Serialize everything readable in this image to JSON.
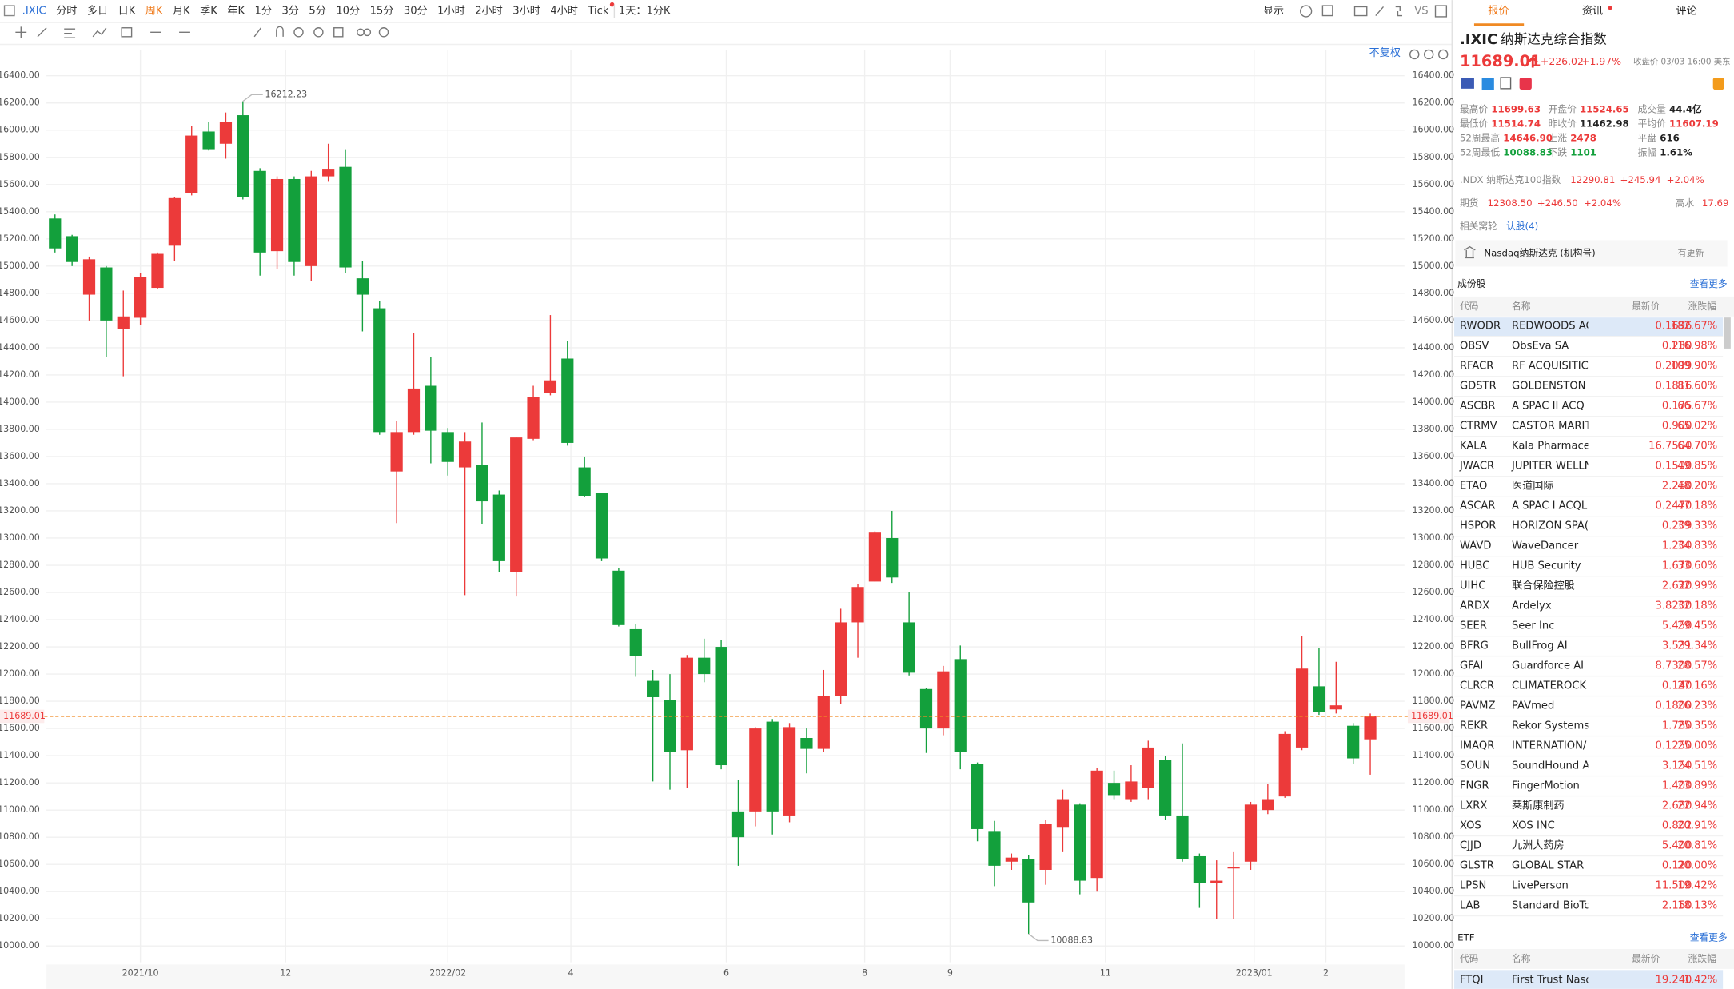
{
  "toolbar": {
    "symbol": ".IXIC",
    "periods": [
      "分时",
      "多日",
      "日K",
      "周K",
      "月K",
      "季K",
      "年K",
      "1分",
      "3分",
      "5分",
      "10分",
      "15分",
      "30分",
      "1小时",
      "2小时",
      "3小时",
      "4小时",
      "Tick"
    ],
    "selected": 3,
    "interval": "1天：1分K",
    "display": "显示",
    "vs": "VS",
    "adjust": "不复权"
  },
  "chart_data": {
    "type": "candlestick",
    "open": [
      15350,
      15220,
      14790,
      14990,
      14540,
      14620,
      14840,
      15150,
      15540,
      15990,
      15900,
      16110,
      15700,
      15110,
      15640,
      15000,
      15660,
      15730,
      14910,
      14690,
      13490,
      13780,
      14120,
      13780,
      13520,
      13540,
      13320,
      12750,
      13730,
      14070,
      14320,
      13520,
      13330,
      12760,
      12330,
      11950,
      11810,
      11440,
      12120,
      12200,
      10990,
      10990,
      11650,
      10960,
      11530,
      11450,
      11840,
      12380,
      12680,
      13000,
      12380,
      11890,
      11600,
      12110,
      11340,
      10840,
      10620,
      10640,
      10560,
      10870,
      11040,
      10500,
      11200,
      11080,
      11160,
      11370,
      10960,
      10660,
      10460,
      10570,
      10620,
      11000,
      11100,
      11460,
      11910,
      11740,
      11620,
      11520
    ],
    "high": [
      15380,
      15230,
      15070,
      15000,
      14820,
      14950,
      15100,
      15510,
      16030,
      16060,
      16130,
      16212.23,
      15720,
      15660,
      15660,
      15700,
      15900,
      15860,
      15040,
      14740,
      13860,
      14510,
      14330,
      13810,
      13780,
      13850,
      13350,
      13740,
      14120,
      14640,
      14450,
      13600,
      13330,
      12780,
      12370,
      12030,
      12000,
      12140,
      12260,
      12250,
      11220,
      11610,
      11670,
      11640,
      11600,
      12030,
      12480,
      12660,
      13050,
      13200,
      12600,
      11900,
      12060,
      12210,
      11350,
      10920,
      10680,
      10670,
      10930,
      11150,
      11050,
      11310,
      11290,
      11330,
      11510,
      11400,
      11490,
      10680,
      10630,
      10690,
      11060,
      11190,
      11580,
      12280,
      12190,
      12090,
      11640,
      11710
    ],
    "low": [
      15100,
      15000,
      14600,
      14330,
      14190,
      14570,
      14830,
      15040,
      15520,
      15850,
      15790,
      15490,
      14930,
      14980,
      14930,
      14890,
      15620,
      14950,
      14520,
      13760,
      13110,
      13760,
      13550,
      13460,
      12580,
      13100,
      12750,
      12570,
      13720,
      14050,
      13680,
      13300,
      12830,
      12350,
      11980,
      11210,
      11150,
      11160,
      11940,
      11300,
      10590,
      10880,
      10820,
      10910,
      11270,
      11430,
      11780,
      12120,
      12680,
      12670,
      11990,
      11420,
      11550,
      11300,
      10770,
      10440,
      10560,
      10088.83,
      10450,
      10690,
      10380,
      10400,
      11080,
      11060,
      11080,
      10930,
      10620,
      10280,
      10200,
      10200,
      10560,
      10970,
      11090,
      11440,
      11700,
      11710,
      11340,
      11260
    ],
    "close": [
      15130,
      15030,
      15050,
      14600,
      14630,
      14920,
      15090,
      15500,
      15960,
      15860,
      16060,
      15510,
      15100,
      15640,
      15030,
      15660,
      15710,
      14990,
      14790,
      13780,
      13780,
      14100,
      13790,
      13560,
      13710,
      13270,
      12830,
      13740,
      14040,
      14160,
      13700,
      13310,
      12850,
      12360,
      12130,
      11830,
      11430,
      12120,
      12000,
      11330,
      10800,
      11600,
      10990,
      11610,
      11450,
      11840,
      12380,
      12640,
      13040,
      12710,
      12010,
      11600,
      12020,
      11430,
      10860,
      10590,
      10650,
      10320,
      10900,
      11080,
      10480,
      11290,
      11110,
      11210,
      11460,
      10960,
      10640,
      10460,
      10480,
      10580,
      11040,
      11080,
      11560,
      12040,
      11720,
      11770,
      11380,
      11689.01
    ],
    "up_color": "#ec3a3a",
    "down_color": "#13a03c",
    "xlim": [
      -0.5,
      79
    ],
    "xticks": [
      {
        "value": 5,
        "label": "2021/10"
      },
      {
        "value": 13.5,
        "label": "12"
      },
      {
        "value": 23,
        "label": "2022/02"
      },
      {
        "value": 30.2,
        "label": "4"
      },
      {
        "value": 39.3,
        "label": "6"
      },
      {
        "value": 47.4,
        "label": "8"
      },
      {
        "value": 52.4,
        "label": "9"
      },
      {
        "value": 61.5,
        "label": "11"
      },
      {
        "value": 70.2,
        "label": "2023/01"
      },
      {
        "value": 74.4,
        "label": "2"
      }
    ],
    "ylim": [
      9880,
      16590
    ],
    "yticks": [
      {
        "value": 10000,
        "label": "10000.00"
      },
      {
        "value": 10200,
        "label": "10200.00"
      },
      {
        "value": 10400,
        "label": "10400.00"
      },
      {
        "value": 10600,
        "label": "10600.00"
      },
      {
        "value": 10800,
        "label": "10800.00"
      },
      {
        "value": 11000,
        "label": "11000.00"
      },
      {
        "value": 11200,
        "label": "11200.00"
      },
      {
        "value": 11400,
        "label": "11400.00"
      },
      {
        "value": 11600,
        "label": "11600.00"
      },
      {
        "value": 11800,
        "label": "11800.00"
      },
      {
        "value": 12000,
        "label": "12000.00"
      },
      {
        "value": 12200,
        "label": "12200.00"
      },
      {
        "value": 12400,
        "label": "12400.00"
      },
      {
        "value": 12600,
        "label": "12600.00"
      },
      {
        "value": 12800,
        "label": "12800.00"
      },
      {
        "value": 13000,
        "label": "13000.00"
      },
      {
        "value": 13200,
        "label": "13200.00"
      },
      {
        "value": 13400,
        "label": "13400.00"
      },
      {
        "value": 13600,
        "label": "13600.00"
      },
      {
        "value": 13800,
        "label": "13800.00"
      },
      {
        "value": 14000,
        "label": "14000.00"
      },
      {
        "value": 14200,
        "label": "14200.00"
      },
      {
        "value": 14400,
        "label": "14400.00"
      },
      {
        "value": 14600,
        "label": "14600.00"
      },
      {
        "value": 14800,
        "label": "14800.00"
      },
      {
        "value": 15000,
        "label": "15000.00"
      },
      {
        "value": 15200,
        "label": "15200.00"
      },
      {
        "value": 15400,
        "label": "15400.00"
      },
      {
        "value": 15600,
        "label": "15600.00"
      },
      {
        "value": 15800,
        "label": "15800.00"
      },
      {
        "value": 16000,
        "label": "16000.00"
      },
      {
        "value": 16200,
        "label": "16200.00"
      },
      {
        "value": 16400,
        "label": "16400.00"
      }
    ],
    "grid": true,
    "annotations": [
      {
        "index": 11,
        "value": 16212.23,
        "label": "16212.23"
      },
      {
        "index": 57,
        "value": 10088.83,
        "label": "10088.83"
      }
    ],
    "last_price": {
      "value": 11689.01,
      "label": "11689.01"
    }
  },
  "panel": {
    "tabs": [
      "报价",
      "资讯",
      "评论"
    ],
    "symbol": ".IXIC",
    "name": "纳斯达克综合指数",
    "price": "11689.01",
    "change": "+226.02",
    "change_pct": "+1.97%",
    "time": "收盘价 03/03 16:00 美东",
    "stats": [
      [
        "最高价",
        "11699.63"
      ],
      [
        "开盘价",
        "11524.65"
      ],
      [
        "成交量",
        "44.4亿"
      ],
      [
        "最低价",
        "11514.74"
      ],
      [
        "昨收价",
        "11462.98"
      ],
      [
        "平均价",
        "11607.19"
      ],
      [
        "52周最高",
        "14646.90"
      ],
      [
        "上涨",
        "2478"
      ],
      [
        "平盘",
        "616"
      ],
      [
        "52周最低",
        "10088.83"
      ],
      [
        "下跌",
        "1101"
      ],
      [
        "振幅",
        "1.61%"
      ]
    ],
    "ndx": [
      ".NDX 纳斯达克100指数",
      "12290.81",
      "+245.94",
      "+2.04%"
    ],
    "futures": [
      "期货",
      "12308.50",
      "+246.50",
      "+2.04%",
      "高水",
      "17.69"
    ],
    "warrants": [
      "相关窝轮",
      "认股(4)"
    ],
    "account": [
      "Nasdaq纳斯达克 (机构号)",
      "有更新"
    ],
    "constituents": {
      "title": "成份股",
      "more": "查看更多",
      "headers": [
        "代码",
        "名称",
        "最新价",
        "涨跌幅"
      ],
      "rows": [
        [
          "RWODR",
          "REDWOODS AC",
          "0.1696",
          "182.67%"
        ],
        [
          "OBSV",
          "ObsEva SA",
          "0.230",
          "116.98%"
        ],
        [
          "RFACR",
          "RF ACQUISITIC",
          "0.2099",
          "109.90%"
        ],
        [
          "GDSTR",
          "GOLDENSTON",
          "0.1816",
          "81.60%"
        ],
        [
          "ASCBR",
          "A SPAC II ACQ",
          "0.175",
          "66.67%"
        ],
        [
          "CTRMV",
          "CASTOR MARIT",
          "0.900",
          "65.02%"
        ],
        [
          "KALA",
          "Kala Pharmaceu",
          "16.7500",
          "64.70%"
        ],
        [
          "JWACR",
          "JUPITER WELLN",
          "0.1500",
          "49.85%"
        ],
        [
          "ETAO",
          "医道国际",
          "2.260",
          "48.20%"
        ],
        [
          "ASCAR",
          "A SPAC I ACQL",
          "0.2470",
          "47.18%"
        ],
        [
          "HSPOR",
          "HORIZON SPA(",
          "0.209",
          "39.33%"
        ],
        [
          "WAVD",
          "WaveDancer",
          "1.200",
          "34.83%"
        ],
        [
          "HUBC",
          "HUB Security",
          "1.670",
          "33.60%"
        ],
        [
          "UIHC",
          "联合保险控股",
          "2.620",
          "32.99%"
        ],
        [
          "ARDX",
          "Ardelyx",
          "3.8200",
          "32.18%"
        ],
        [
          "SEER",
          "Seer Inc",
          "5.450",
          "29.45%"
        ],
        [
          "BFRG",
          "BullFrog AI",
          "3.531",
          "29.34%"
        ],
        [
          "GFAI",
          "Guardforce AI",
          "8.7300",
          "28.57%"
        ],
        [
          "CLRCR",
          "CLIMATEROCK",
          "0.140",
          "27.16%"
        ],
        [
          "PAVMZ",
          "PAVmed",
          "0.1800",
          "26.23%"
        ],
        [
          "REKR",
          "Rekor Systems",
          "1.780",
          "25.35%"
        ],
        [
          "IMAQR",
          "INTERNATION/",
          "0.1250",
          "25.00%"
        ],
        [
          "SOUN",
          "SoundHound A",
          "3.150",
          "24.51%"
        ],
        [
          "FNGR",
          "FingerMotion",
          "1.400",
          "23.89%"
        ],
        [
          "LXRX",
          "莱斯康制药",
          "2.680",
          "22.94%"
        ],
        [
          "XOS",
          "XOS INC",
          "0.802",
          "20.91%"
        ],
        [
          "CJJD",
          "九洲大药房",
          "5.400",
          "20.81%"
        ],
        [
          "GLSTR",
          "GLOBAL STAR",
          "0.120",
          "20.00%"
        ],
        [
          "LPSN",
          "LivePerson",
          "11.500",
          "19.42%"
        ],
        [
          "LAB",
          "Standard BioTo",
          "2.150",
          "18.13%"
        ]
      ]
    },
    "etf": {
      "title": "ETF",
      "more": "查看更多",
      "headers": [
        "代码",
        "名称",
        "最新价",
        "涨跌幅"
      ],
      "rows": [
        [
          "FTQI",
          "First Trust Nasdaq",
          "19.240",
          "1.42%"
        ]
      ]
    }
  }
}
